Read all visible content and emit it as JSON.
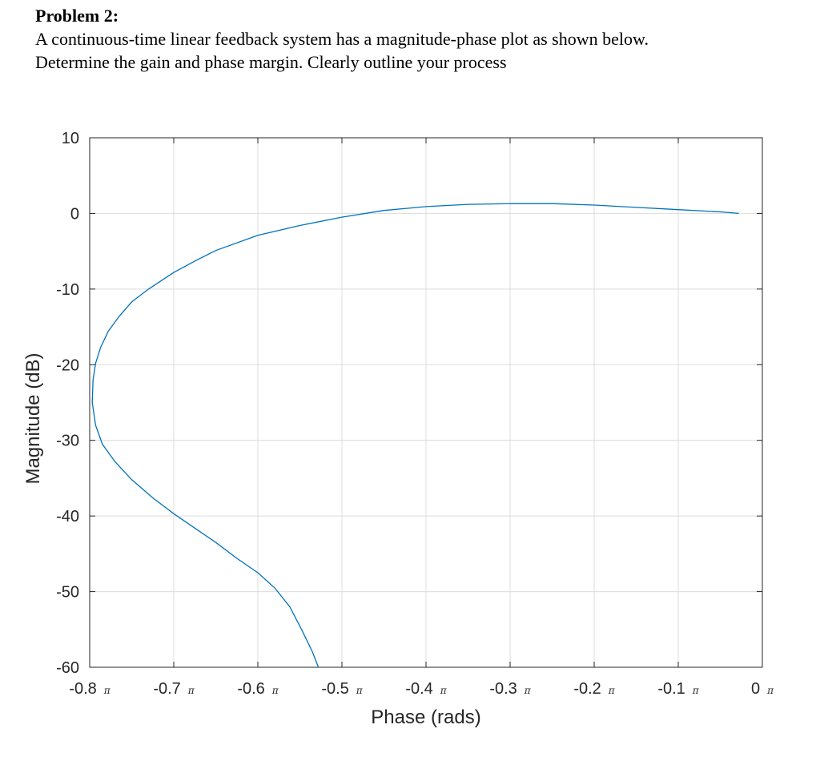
{
  "problem": {
    "title": "Problem 2:",
    "line1": "A continuous-time linear feedback system has a magnitude-phase plot as shown below.",
    "line2": "Determine the gain and phase margin.  Clearly outline your process"
  },
  "chart_data": {
    "type": "line",
    "xlabel": "Phase (rads)",
    "ylabel": "Magnitude (dB)",
    "xlim": [
      -0.8,
      0.0
    ],
    "ylim": [
      -60,
      10
    ],
    "x_unit_symbol": "π",
    "x_ticks": [
      {
        "value": -0.8,
        "label": "-0.8"
      },
      {
        "value": -0.7,
        "label": "-0.7"
      },
      {
        "value": -0.6,
        "label": "-0.6"
      },
      {
        "value": -0.5,
        "label": "-0.5"
      },
      {
        "value": -0.4,
        "label": "-0.4"
      },
      {
        "value": -0.3,
        "label": "-0.3"
      },
      {
        "value": -0.2,
        "label": "-0.2"
      },
      {
        "value": -0.1,
        "label": "-0.1"
      },
      {
        "value": 0.0,
        "label": "0"
      }
    ],
    "y_ticks": [
      {
        "value": 10,
        "label": "10"
      },
      {
        "value": 0,
        "label": "0"
      },
      {
        "value": -10,
        "label": "-10"
      },
      {
        "value": -20,
        "label": "-20"
      },
      {
        "value": -30,
        "label": "-30"
      },
      {
        "value": -40,
        "label": "-40"
      },
      {
        "value": -50,
        "label": "-50"
      },
      {
        "value": -60,
        "label": "-60"
      }
    ],
    "grid": true,
    "line_color": "#0072bd",
    "series": [
      {
        "x": [
          -0.528,
          -0.535,
          -0.548,
          -0.562,
          -0.58,
          -0.6,
          -0.625,
          -0.65,
          -0.675,
          -0.7,
          -0.725,
          -0.75,
          -0.77,
          -0.785,
          -0.793,
          -0.797,
          -0.796,
          -0.793,
          -0.787,
          -0.778,
          -0.765,
          -0.75,
          -0.73,
          -0.7,
          -0.675,
          -0.65,
          -0.6,
          -0.55,
          -0.5,
          -0.45,
          -0.4,
          -0.35,
          -0.3,
          -0.25,
          -0.2,
          -0.15,
          -0.1,
          -0.05,
          -0.028
        ],
        "y": [
          -60,
          -58,
          -55,
          -52,
          -49.5,
          -47.5,
          -45.6,
          -43.5,
          -41.6,
          -39.7,
          -37.6,
          -35.2,
          -32.8,
          -30.5,
          -28,
          -25,
          -22,
          -19.8,
          -17.7,
          -15.6,
          -13.6,
          -11.7,
          -10,
          -7.8,
          -6.3,
          -4.9,
          -2.9,
          -1.6,
          -0.5,
          0.4,
          0.9,
          1.2,
          1.3,
          1.3,
          1.1,
          0.8,
          0.5,
          0.2,
          0.0
        ]
      }
    ]
  }
}
